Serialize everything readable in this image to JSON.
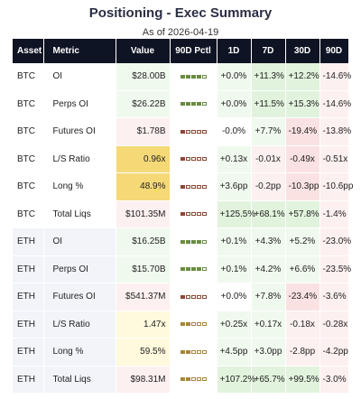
{
  "header": {
    "title": "Positioning - Exec Summary",
    "as_of": "As of 2026-04-19"
  },
  "table": {
    "columns": [
      "Asset",
      "Metric",
      "Value",
      "90D Pctl",
      "1D",
      "7D",
      "30D",
      "90D"
    ],
    "rows": [
      {
        "asset": "BTC",
        "metric": "OI",
        "value": "$28.00B",
        "pctl": 0.8,
        "d1": "+0.0%",
        "d7": "+11.3%",
        "d30": "+12.2%",
        "d90": "-14.6%"
      },
      {
        "asset": "BTC",
        "metric": "Perps OI",
        "value": "$26.22B",
        "pctl": 0.8,
        "d1": "+0.0%",
        "d7": "+11.5%",
        "d30": "+15.3%",
        "d90": "-14.6%"
      },
      {
        "asset": "BTC",
        "metric": "Futures OI",
        "value": "$1.78B",
        "pctl": 0.2,
        "d1": "-0.0%",
        "d7": "+7.7%",
        "d30": "-19.4%",
        "d90": "-13.8%"
      },
      {
        "asset": "BTC",
        "metric": "L/S Ratio",
        "value": "0.96x",
        "pctl": 0.2,
        "d1": "+0.13x",
        "d7": "-0.01x",
        "d30": "-0.49x",
        "d90": "-0.51x"
      },
      {
        "asset": "BTC",
        "metric": "Long %",
        "value": "48.9%",
        "pctl": 0.2,
        "d1": "+3.6pp",
        "d7": "-0.2pp",
        "d30": "-10.3pp",
        "d90": "-10.6pp"
      },
      {
        "asset": "BTC",
        "metric": "Total Liqs",
        "value": "$101.35M",
        "pctl": 0.2,
        "d1": "+125.5%",
        "d7": "+68.1%",
        "d30": "+57.8%",
        "d90": "-1.4%"
      },
      {
        "asset": "ETH",
        "metric": "OI",
        "value": "$16.25B",
        "pctl": 0.8,
        "d1": "+0.1%",
        "d7": "+4.3%",
        "d30": "+5.2%",
        "d90": "-23.0%"
      },
      {
        "asset": "ETH",
        "metric": "Perps OI",
        "value": "$15.70B",
        "pctl": 0.8,
        "d1": "+0.1%",
        "d7": "+4.2%",
        "d30": "+6.6%",
        "d90": "-23.5%"
      },
      {
        "asset": "ETH",
        "metric": "Futures OI",
        "value": "$541.37M",
        "pctl": 0.2,
        "d1": "+0.0%",
        "d7": "+7.8%",
        "d30": "-23.4%",
        "d90": "-3.6%"
      },
      {
        "asset": "ETH",
        "metric": "L/S Ratio",
        "value": "1.47x",
        "pctl": 0.4,
        "d1": "+0.25x",
        "d7": "+0.17x",
        "d30": "-0.18x",
        "d90": "-0.28x"
      },
      {
        "asset": "ETH",
        "metric": "Long %",
        "value": "59.5%",
        "pctl": 0.4,
        "d1": "+4.5pp",
        "d7": "+3.0pp",
        "d30": "-2.8pp",
        "d90": "-4.2pp"
      },
      {
        "asset": "ETH",
        "metric": "Total Liqs",
        "value": "$98.31M",
        "pctl": 0.4,
        "d1": "+107.2%",
        "d7": "+65.7%",
        "d30": "+99.5%",
        "d90": "-3.0%"
      }
    ]
  },
  "colors": {
    "header_bg": "#0f1424",
    "positive_bg": "#e2f3dd",
    "negative_bg": "#fbe2e2",
    "neutral_bg": "#fff9de",
    "highlight_bg": "#f5d977",
    "bar_high": "#6a8c42",
    "bar_mid": "#a8873a",
    "bar_low": "#8b4a36"
  }
}
